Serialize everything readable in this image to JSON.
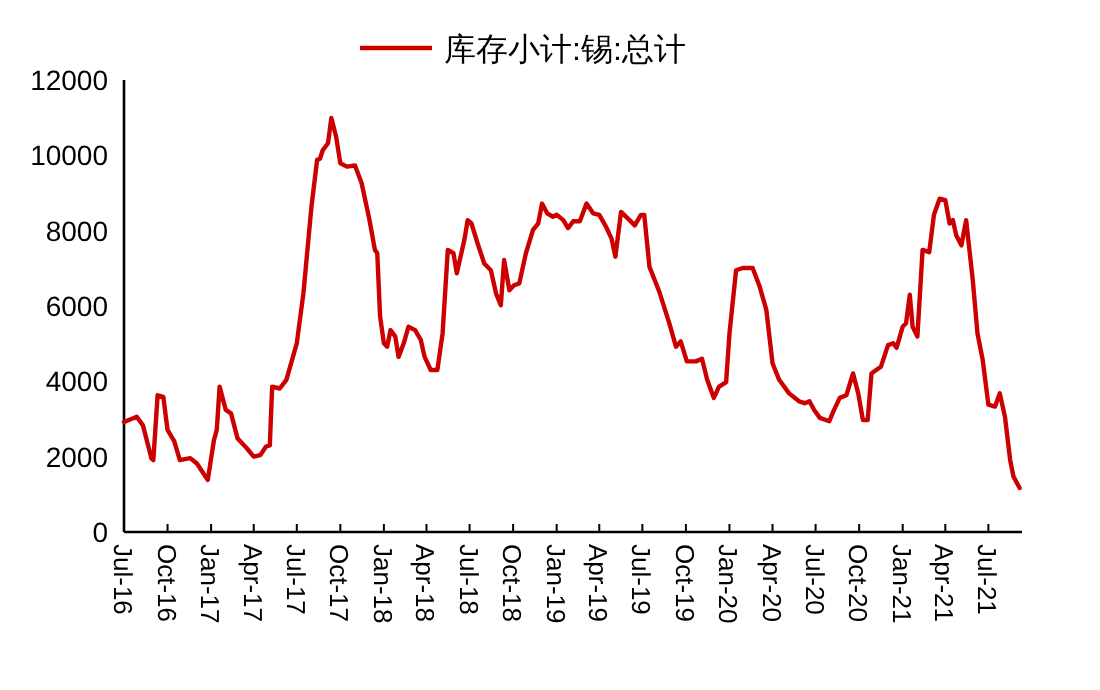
{
  "chart_data": {
    "type": "line",
    "legend": "top",
    "grid": false,
    "marker": "none",
    "line_style": "solid",
    "xlim": [
      "2016-07-01",
      "2021-09-10"
    ],
    "xticks": [
      {
        "value": "2016-07-01",
        "label": "Jul-16"
      },
      {
        "value": "2016-10-01",
        "label": "Oct-16"
      },
      {
        "value": "2017-01-01",
        "label": "Jan-17"
      },
      {
        "value": "2017-04-01",
        "label": "Apr-17"
      },
      {
        "value": "2017-07-01",
        "label": "Jul-17"
      },
      {
        "value": "2017-10-01",
        "label": "Oct-17"
      },
      {
        "value": "2018-01-01",
        "label": "Jan-18"
      },
      {
        "value": "2018-04-01",
        "label": "Apr-18"
      },
      {
        "value": "2018-07-01",
        "label": "Jul-18"
      },
      {
        "value": "2018-10-01",
        "label": "Oct-18"
      },
      {
        "value": "2019-01-01",
        "label": "Jan-19"
      },
      {
        "value": "2019-04-01",
        "label": "Apr-19"
      },
      {
        "value": "2019-07-01",
        "label": "Jul-19"
      },
      {
        "value": "2019-10-01",
        "label": "Oct-19"
      },
      {
        "value": "2020-01-01",
        "label": "Jan-20"
      },
      {
        "value": "2020-04-01",
        "label": "Apr-20"
      },
      {
        "value": "2020-07-01",
        "label": "Jul-20"
      },
      {
        "value": "2020-10-01",
        "label": "Oct-20"
      },
      {
        "value": "2021-01-01",
        "label": "Jan-21"
      },
      {
        "value": "2021-04-01",
        "label": "Apr-21"
      },
      {
        "value": "2021-07-01",
        "label": "Jul-21"
      }
    ],
    "ylim": [
      0,
      12000
    ],
    "yticks": [
      0,
      2000,
      4000,
      6000,
      8000,
      10000,
      12000
    ],
    "x": [
      "2016-07-01",
      "2016-07-28",
      "2016-08-10",
      "2016-08-28",
      "2016-09-01",
      "2016-09-10",
      "2016-09-22",
      "2016-10-01",
      "2016-10-15",
      "2016-10-27",
      "2016-11-18",
      "2016-12-02",
      "2016-12-25",
      "2017-01-07",
      "2017-01-13",
      "2017-01-19",
      "2017-02-01",
      "2017-02-12",
      "2017-02-26",
      "2017-03-17",
      "2017-04-01",
      "2017-04-15",
      "2017-04-27",
      "2017-05-05",
      "2017-05-10",
      "2017-05-26",
      "2017-06-09",
      "2017-07-01",
      "2017-07-15",
      "2017-08-01",
      "2017-08-13",
      "2017-08-19",
      "2017-08-25",
      "2017-09-05",
      "2017-09-12",
      "2017-09-22",
      "2017-10-01",
      "2017-10-15",
      "2017-11-01",
      "2017-11-15",
      "2017-12-01",
      "2017-12-13",
      "2017-12-18",
      "2017-12-24",
      "2018-01-01",
      "2018-01-08",
      "2018-01-15",
      "2018-01-25",
      "2018-02-01",
      "2018-02-12",
      "2018-02-22",
      "2018-03-08",
      "2018-03-20",
      "2018-03-28",
      "2018-04-10",
      "2018-04-24",
      "2018-05-05",
      "2018-05-16",
      "2018-05-28",
      "2018-06-04",
      "2018-06-20",
      "2018-06-27",
      "2018-07-05",
      "2018-07-18",
      "2018-08-01",
      "2018-08-15",
      "2018-08-26",
      "2018-09-05",
      "2018-09-12",
      "2018-09-23",
      "2018-10-03",
      "2018-10-14",
      "2018-10-28",
      "2018-11-12",
      "2018-11-23",
      "2018-12-01",
      "2018-12-12",
      "2018-12-24",
      "2019-01-01",
      "2019-01-15",
      "2019-01-25",
      "2019-02-05",
      "2019-02-19",
      "2019-03-05",
      "2019-03-19",
      "2019-04-01",
      "2019-04-15",
      "2019-04-27",
      "2019-05-05",
      "2019-05-17",
      "2019-06-04",
      "2019-06-15",
      "2019-06-28",
      "2019-07-05",
      "2019-07-16",
      "2019-08-06",
      "2019-08-27",
      "2019-09-10",
      "2019-09-20",
      "2019-10-03",
      "2019-10-22",
      "2019-11-04",
      "2019-11-15",
      "2019-11-29",
      "2019-12-10",
      "2019-12-25",
      "2020-01-01",
      "2020-01-15",
      "2020-01-29",
      "2020-02-19",
      "2020-03-05",
      "2020-03-19",
      "2020-04-01",
      "2020-04-15",
      "2020-05-06",
      "2020-05-27",
      "2020-06-08",
      "2020-06-18",
      "2020-06-28",
      "2020-07-10",
      "2020-07-30",
      "2020-08-07",
      "2020-08-21",
      "2020-09-04",
      "2020-09-18",
      "2020-09-29",
      "2020-10-09",
      "2020-10-19",
      "2020-10-27",
      "2020-11-06",
      "2020-11-16",
      "2020-12-01",
      "2020-12-12",
      "2020-12-19",
      "2021-01-01",
      "2021-01-08",
      "2021-01-16",
      "2021-01-22",
      "2021-02-01",
      "2021-02-12",
      "2021-02-26",
      "2021-03-08",
      "2021-03-20",
      "2021-04-01",
      "2021-04-10",
      "2021-04-17",
      "2021-04-24",
      "2021-05-05",
      "2021-05-15",
      "2021-05-29",
      "2021-06-08",
      "2021-06-19",
      "2021-07-01",
      "2021-07-15",
      "2021-07-25",
      "2021-08-05",
      "2021-08-16",
      "2021-08-23",
      "2021-09-05"
    ],
    "series": [
      {
        "name": "库存小计:锡:总计",
        "color": "#cc0000",
        "values": [
          2920,
          3060,
          2830,
          1950,
          1910,
          3630,
          3590,
          2710,
          2410,
          1910,
          1960,
          1820,
          1380,
          2440,
          2710,
          3860,
          3240,
          3150,
          2480,
          2230,
          2000,
          2040,
          2270,
          2300,
          3860,
          3810,
          4040,
          5010,
          6340,
          8640,
          9880,
          9910,
          10140,
          10320,
          10990,
          10500,
          9790,
          9700,
          9730,
          9260,
          8320,
          7490,
          7400,
          5720,
          5010,
          4920,
          5360,
          5190,
          4650,
          5010,
          5450,
          5360,
          5100,
          4650,
          4300,
          4300,
          5270,
          7490,
          7400,
          6870,
          7750,
          8280,
          8190,
          7660,
          7130,
          6950,
          6330,
          6020,
          7220,
          6420,
          6550,
          6600,
          7400,
          8020,
          8190,
          8720,
          8460,
          8370,
          8420,
          8280,
          8070,
          8250,
          8250,
          8720,
          8460,
          8420,
          8110,
          7790,
          7310,
          8500,
          8280,
          8140,
          8420,
          8420,
          7040,
          6370,
          5540,
          4920,
          5060,
          4530,
          4530,
          4600,
          4040,
          3560,
          3860,
          3980,
          5270,
          6950,
          7010,
          7010,
          6510,
          5890,
          4480,
          4040,
          3680,
          3470,
          3420,
          3470,
          3240,
          3030,
          2940,
          3190,
          3560,
          3630,
          4210,
          3680,
          2970,
          2970,
          4210,
          4300,
          4390,
          4960,
          5010,
          4890,
          5450,
          5540,
          6300,
          5450,
          5190,
          7490,
          7430,
          8420,
          8850,
          8810,
          8190,
          8280,
          7880,
          7610,
          8280,
          6690,
          5270,
          4570,
          3380,
          3330,
          3680,
          3060,
          1910,
          1470,
          1170
        ]
      }
    ]
  }
}
